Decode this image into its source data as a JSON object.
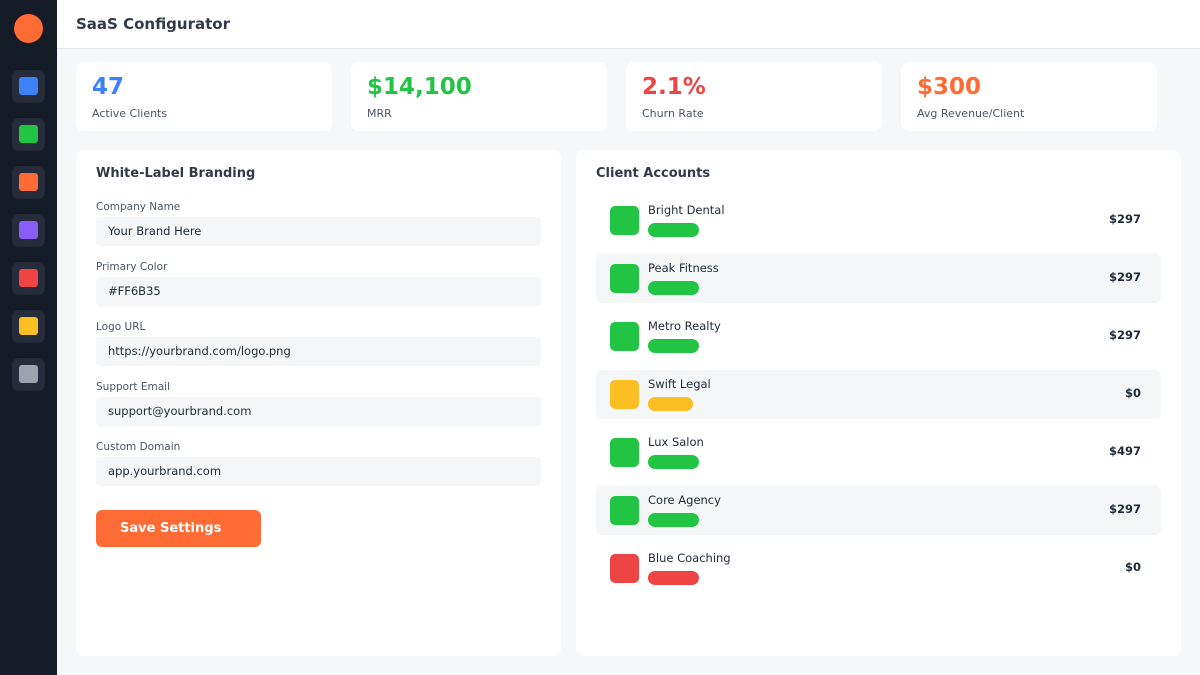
{
  "app": {
    "title": "SaaS Configurator"
  },
  "colors": {
    "accent": "#ff6b35",
    "blue": "#3b82f6",
    "green": "#22c444",
    "orange": "#ff6b35",
    "red": "#ef4444",
    "yellow": "#fbbf24",
    "purple": "#8b5cf6",
    "gray": "#9ca3af"
  },
  "sidebar": {
    "items": [
      {
        "name": "blue",
        "color": "#3b82f6"
      },
      {
        "name": "green",
        "color": "#22c444"
      },
      {
        "name": "orange",
        "color": "#ff6b35"
      },
      {
        "name": "purple",
        "color": "#8b5cf6"
      },
      {
        "name": "red",
        "color": "#ef4444"
      },
      {
        "name": "yellow",
        "color": "#fbbf24"
      },
      {
        "name": "gray",
        "color": "#9ca3af"
      }
    ]
  },
  "stats": [
    {
      "value": "47",
      "label": "Active Clients",
      "color": "#3b82f6"
    },
    {
      "value": "$14,100",
      "label": "MRR",
      "color": "#22c444"
    },
    {
      "value": "2.1%",
      "label": "Churn Rate",
      "color": "#ef4444"
    },
    {
      "value": "$300",
      "label": "Avg Revenue/Client",
      "color": "#ff6b35"
    }
  ],
  "branding": {
    "title": "White-Label Branding",
    "fields": [
      {
        "label": "Company Name",
        "value": "Your Brand Here"
      },
      {
        "label": "Primary Color",
        "value": "#FF6B35"
      },
      {
        "label": "Logo URL",
        "value": "https://yourbrand.com/logo.png"
      },
      {
        "label": "Support Email",
        "value": "support@yourbrand.com"
      },
      {
        "label": "Custom Domain",
        "value": "app.yourbrand.com"
      }
    ],
    "save_label": "Save Settings"
  },
  "clients": {
    "title": "Client Accounts",
    "rows": [
      {
        "name": "Bright Dental",
        "amount": "$297",
        "status": "active",
        "color": "#22c444"
      },
      {
        "name": "Peak Fitness",
        "amount": "$297",
        "status": "active",
        "color": "#22c444"
      },
      {
        "name": "Metro Realty",
        "amount": "$297",
        "status": "active",
        "color": "#22c444"
      },
      {
        "name": "Swift Legal",
        "amount": "$0",
        "status": "trial",
        "color": "#fbbf24"
      },
      {
        "name": "Lux Salon",
        "amount": "$497",
        "status": "active",
        "color": "#22c444"
      },
      {
        "name": "Core Agency",
        "amount": "$297",
        "status": "active",
        "color": "#22c444"
      },
      {
        "name": "Blue Coaching",
        "amount": "$0",
        "status": "inactive",
        "color": "#ef4444"
      }
    ]
  }
}
